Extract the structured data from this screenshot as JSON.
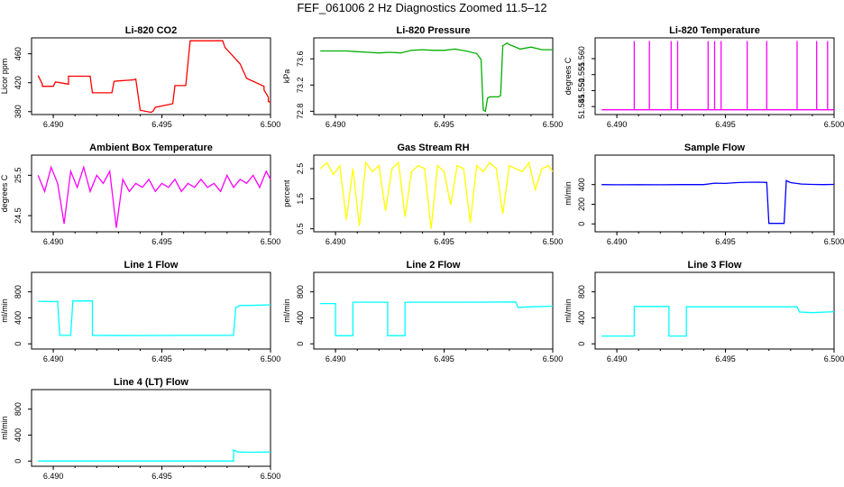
{
  "figure": {
    "title": "FEF_061006  2 Hz Diagnostics Zoomed 11.5–12"
  },
  "chart_data": [
    {
      "type": "line",
      "title": "Li-820 CO2",
      "ylabel": "Licor ppm",
      "xlim": [
        6.489,
        6.5
      ],
      "ylim": [
        376,
        482
      ],
      "x_ticks": [
        "6.490",
        "6.495",
        "6.500"
      ],
      "y_ticks": [
        "380",
        "420",
        "460"
      ],
      "color": "#ff0000",
      "series": [
        {
          "x": [
            6.4893,
            6.4895,
            6.4895,
            6.49,
            6.4901,
            6.4907,
            6.4907,
            6.4917,
            6.4918,
            6.4927,
            6.4928,
            6.4937,
            6.4938,
            6.494,
            6.4945,
            6.4946,
            6.4947,
            6.4955,
            6.4956,
            6.4961,
            6.4963,
            6.4978,
            6.4979,
            6.4986,
            6.4989,
            6.4997,
            6.4997,
            6.4998,
            6.4999,
            6.4999,
            6.5
          ],
          "y": [
            430,
            418,
            415,
            415,
            421,
            418,
            429,
            429,
            406,
            406,
            422,
            424,
            425,
            382,
            379,
            381,
            386,
            391,
            416,
            416,
            478,
            478,
            469,
            446,
            426,
            415,
            410,
            405,
            400,
            394,
            393
          ]
        }
      ]
    },
    {
      "type": "line",
      "title": "Li-820 Pressure",
      "ylabel": "kPa",
      "xlim": [
        6.489,
        6.5
      ],
      "ylim": [
        72.75,
        73.92
      ],
      "x_ticks": [
        "6.490",
        "6.495",
        "6.500"
      ],
      "y_ticks": [
        "72.8",
        "73.2",
        "73.6"
      ],
      "color": "#00b000",
      "series": [
        {
          "x": [
            6.4893,
            6.49,
            6.4905,
            6.491,
            6.4915,
            6.492,
            6.4925,
            6.493,
            6.4935,
            6.494,
            6.4945,
            6.495,
            6.4955,
            6.496,
            6.4965,
            6.4967,
            6.4968,
            6.4969,
            6.497,
            6.4971,
            6.4975,
            6.4976,
            6.4977,
            6.4979,
            6.498,
            6.4985,
            6.499,
            6.4995,
            6.5
          ],
          "y": [
            73.72,
            73.72,
            73.72,
            73.71,
            73.7,
            73.69,
            73.7,
            73.69,
            73.73,
            73.74,
            73.73,
            73.73,
            73.75,
            73.72,
            73.68,
            73.59,
            72.82,
            72.8,
            73.0,
            73.02,
            73.02,
            73.04,
            73.8,
            73.84,
            73.82,
            73.75,
            73.78,
            73.74,
            73.74
          ]
        }
      ]
    },
    {
      "type": "line",
      "title": "Li-820 Temperature",
      "ylabel": "degrees C",
      "xlim": [
        6.489,
        6.5
      ],
      "ylim": [
        51.5425,
        51.5665
      ],
      "x_ticks": [
        "6.490",
        "6.495",
        "6.500"
      ],
      "y_ticks": [
        "51.545",
        "51.550",
        "51.555",
        "51.560"
      ],
      "color": "#ff00ff",
      "series": [
        {
          "x": [
            6.4893,
            6.4908,
            6.4908,
            6.4908,
            6.4908,
            6.4915,
            6.4915,
            6.4915,
            6.4915,
            6.4925,
            6.4925,
            6.4925,
            6.4925,
            6.4928,
            6.4928,
            6.4928,
            6.4928,
            6.4942,
            6.4942,
            6.4942,
            6.4942,
            6.4945,
            6.4945,
            6.4945,
            6.4945,
            6.4948,
            6.4948,
            6.4948,
            6.4948,
            6.496,
            6.496,
            6.496,
            6.496,
            6.4969,
            6.4969,
            6.4969,
            6.4969,
            6.4983,
            6.4983,
            6.4983,
            6.4983,
            6.4992,
            6.4992,
            6.4992,
            6.4992,
            6.4997,
            6.4997,
            6.4997,
            6.4997,
            6.5
          ],
          "y": [
            51.544,
            51.544,
            51.5655,
            51.5655,
            51.544,
            51.544,
            51.5655,
            51.5655,
            51.544,
            51.544,
            51.5655,
            51.5655,
            51.544,
            51.544,
            51.5655,
            51.5655,
            51.544,
            51.544,
            51.5655,
            51.558,
            51.544,
            51.544,
            51.5655,
            51.5655,
            51.544,
            51.544,
            51.5655,
            51.5655,
            51.544,
            51.544,
            51.5655,
            51.5655,
            51.544,
            51.544,
            51.5655,
            51.5655,
            51.544,
            51.544,
            51.5655,
            51.5655,
            51.544,
            51.544,
            51.5655,
            51.5655,
            51.544,
            51.544,
            51.5655,
            51.5655,
            51.544,
            51.544
          ]
        }
      ]
    },
    {
      "type": "line",
      "title": "Ambient Box Temperature",
      "ylabel": "degrees C",
      "xlim": [
        6.489,
        6.5
      ],
      "ylim": [
        24.1,
        26.0
      ],
      "x_ticks": [
        "6.490",
        "6.495",
        "6.500"
      ],
      "y_ticks": [
        "24.5",
        "25.5"
      ],
      "color": "#ff00ff",
      "series": [
        {
          "x": [
            6.4893,
            6.4896,
            6.4899,
            6.4902,
            6.4905,
            6.4908,
            6.4911,
            6.4914,
            6.4917,
            6.492,
            6.4923,
            6.4926,
            6.4929,
            6.4932,
            6.4935,
            6.4938,
            6.4941,
            6.4944,
            6.4947,
            6.495,
            6.4953,
            6.4956,
            6.4959,
            6.4962,
            6.4965,
            6.4968,
            6.4971,
            6.4974,
            6.4977,
            6.498,
            6.4983,
            6.4986,
            6.4989,
            6.4992,
            6.4995,
            6.4998,
            6.5
          ],
          "y": [
            25.5,
            25.1,
            25.7,
            25.3,
            24.3,
            25.6,
            25.2,
            25.7,
            25.1,
            25.5,
            25.3,
            25.6,
            24.2,
            25.4,
            25.1,
            25.3,
            25.2,
            25.4,
            25.1,
            25.3,
            25.2,
            25.4,
            25.1,
            25.3,
            25.2,
            25.4,
            25.2,
            25.3,
            25.1,
            25.5,
            25.2,
            25.4,
            25.3,
            25.5,
            25.2,
            25.6,
            25.4
          ]
        }
      ]
    },
    {
      "type": "line",
      "title": "Gas Stream RH",
      "ylabel": "percent",
      "xlim": [
        6.489,
        6.5
      ],
      "ylim": [
        0.4,
        2.95
      ],
      "x_ticks": [
        "6.490",
        "6.495",
        "6.500"
      ],
      "y_ticks": [
        "0.5",
        "1.5",
        "2.5"
      ],
      "color": "#ffff00",
      "series": [
        {
          "x": [
            6.4893,
            6.4896,
            6.4899,
            6.4902,
            6.4905,
            6.4908,
            6.4911,
            6.4914,
            6.4917,
            6.492,
            6.4923,
            6.4926,
            6.4929,
            6.4932,
            6.4935,
            6.4938,
            6.4941,
            6.4944,
            6.4947,
            6.495,
            6.4953,
            6.4956,
            6.4959,
            6.4962,
            6.4965,
            6.4968,
            6.4971,
            6.4974,
            6.4977,
            6.498,
            6.4983,
            6.4986,
            6.4989,
            6.4992,
            6.4995,
            6.4998,
            6.5
          ],
          "y": [
            2.5,
            2.7,
            2.3,
            2.6,
            0.8,
            2.5,
            0.6,
            2.7,
            2.4,
            2.6,
            1.1,
            2.5,
            2.7,
            0.9,
            2.4,
            2.6,
            2.5,
            0.5,
            2.6,
            2.4,
            1.3,
            2.6,
            2.5,
            0.7,
            2.6,
            2.4,
            2.7,
            2.5,
            1.0,
            2.6,
            2.5,
            2.4,
            2.7,
            1.8,
            2.5,
            2.6,
            2.4
          ]
        }
      ]
    },
    {
      "type": "line",
      "title": "Sample Flow",
      "ylabel": "ml/min",
      "xlim": [
        6.489,
        6.5
      ],
      "ylim": [
        -80,
        700
      ],
      "x_ticks": [
        "6.490",
        "6.495",
        "6.500"
      ],
      "y_ticks": [
        "0",
        "200",
        "400"
      ],
      "color": "#0000ff",
      "series": [
        {
          "x": [
            6.4893,
            6.49,
            6.491,
            6.492,
            6.493,
            6.494,
            6.4945,
            6.495,
            6.4955,
            6.496,
            6.4965,
            6.4969,
            6.497,
            6.4977,
            6.4978,
            6.498,
            6.4985,
            6.499,
            6.4995,
            6.5
          ],
          "y": [
            400,
            398,
            399,
            398,
            400,
            400,
            415,
            412,
            420,
            424,
            425,
            422,
            5,
            5,
            440,
            420,
            405,
            402,
            400,
            402
          ]
        }
      ]
    },
    {
      "type": "line",
      "title": "Line 1 Flow",
      "ylabel": "ml/min",
      "xlim": [
        6.489,
        6.5
      ],
      "ylim": [
        -80,
        1100
      ],
      "x_ticks": [
        "6.490",
        "6.495",
        "6.500"
      ],
      "y_ticks": [
        "0",
        "400",
        "800"
      ],
      "color": "#00ffff",
      "series": [
        {
          "x": [
            6.4893,
            6.49,
            6.4902,
            6.4903,
            6.4908,
            6.4909,
            6.4918,
            6.4918,
            6.494,
            6.496,
            6.4983,
            6.4984,
            6.4986,
            6.499,
            6.5
          ],
          "y": [
            655,
            650,
            655,
            130,
            130,
            660,
            660,
            130,
            128,
            130,
            130,
            560,
            590,
            590,
            600
          ]
        }
      ]
    },
    {
      "type": "line",
      "title": "Line 2 Flow",
      "ylabel": "ml/min",
      "xlim": [
        6.489,
        6.5
      ],
      "ylim": [
        -80,
        1100
      ],
      "x_ticks": [
        "6.490",
        "6.495",
        "6.500"
      ],
      "y_ticks": [
        "0",
        "400",
        "800"
      ],
      "color": "#00ffff",
      "series": [
        {
          "x": [
            6.4893,
            6.49,
            6.49,
            6.4908,
            6.4908,
            6.4924,
            6.4924,
            6.4932,
            6.4932,
            6.4945,
            6.496,
            6.4983,
            6.4984,
            6.499,
            6.5
          ],
          "y": [
            620,
            620,
            125,
            125,
            640,
            640,
            125,
            125,
            640,
            640,
            640,
            645,
            560,
            570,
            580
          ]
        }
      ]
    },
    {
      "type": "line",
      "title": "Line 3 Flow",
      "ylabel": "ml/min",
      "xlim": [
        6.489,
        6.5
      ],
      "ylim": [
        -80,
        1100
      ],
      "x_ticks": [
        "6.490",
        "6.495",
        "6.500"
      ],
      "y_ticks": [
        "0",
        "400",
        "800"
      ],
      "color": "#00ffff",
      "series": [
        {
          "x": [
            6.4893,
            6.49,
            6.4908,
            6.4908,
            6.4924,
            6.4924,
            6.4932,
            6.4932,
            6.4945,
            6.496,
            6.4983,
            6.4984,
            6.499,
            6.5
          ],
          "y": [
            120,
            120,
            120,
            575,
            575,
            120,
            120,
            570,
            570,
            570,
            570,
            490,
            480,
            495
          ]
        }
      ]
    },
    {
      "type": "line",
      "title": "Line 4 (LT) Flow",
      "ylabel": "ml/min",
      "xlim": [
        6.489,
        6.5
      ],
      "ylim": [
        -80,
        1100
      ],
      "x_ticks": [
        "6.490",
        "6.495",
        "6.500"
      ],
      "y_ticks": [
        "0",
        "400",
        "800"
      ],
      "color": "#00ffff",
      "series": [
        {
          "x": [
            6.4893,
            6.492,
            6.495,
            6.4983,
            6.4983,
            6.4985,
            6.499,
            6.5
          ],
          "y": [
            0,
            0,
            0,
            0,
            170,
            140,
            135,
            140
          ]
        }
      ]
    }
  ]
}
